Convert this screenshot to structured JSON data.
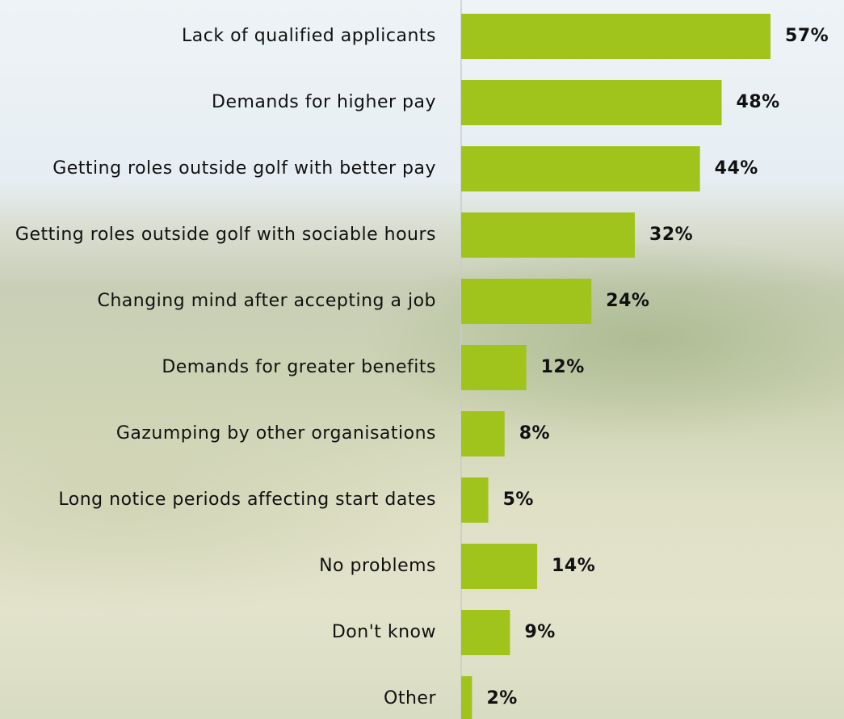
{
  "chart_data": {
    "type": "bar",
    "orientation": "horizontal",
    "color": "#a0c41c",
    "categories": [
      "Lack of qualified applicants",
      "Demands for higher pay",
      "Getting roles outside golf with better pay",
      "Getting roles outside golf with sociable hours",
      "Changing mind after accepting a job",
      "Demands for greater benefits",
      "Gazumping by other organisations",
      "Long notice periods affecting start dates",
      "No problems",
      "Don't know",
      "Other"
    ],
    "values": [
      57,
      48,
      44,
      32,
      24,
      12,
      8,
      5,
      14,
      9,
      2
    ],
    "value_labels": [
      "57%",
      "48%",
      "44%",
      "32%",
      "24%",
      "12%",
      "8%",
      "5%",
      "14%",
      "9%",
      "2%"
    ]
  }
}
